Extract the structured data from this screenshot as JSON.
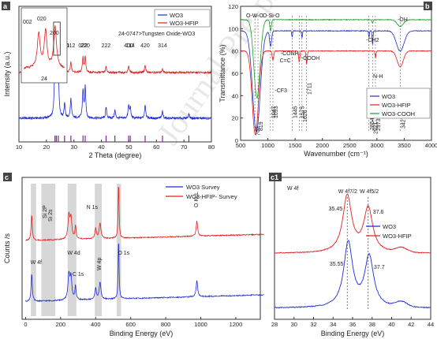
{
  "figure": {
    "watermark": "Journal Pre-proof"
  },
  "colors": {
    "blue": "#1f2bd6",
    "red": "#e0201f",
    "green": "#1a9e2b",
    "purple": "#8a1fa0",
    "grey": "#bdbdbd"
  },
  "chart_data": [
    {
      "panel": "a",
      "type": "line",
      "xlabel": "2 Theta (degree)",
      "ylabel": "Intensity (a.u.)",
      "xlim": [
        10,
        80
      ],
      "xticks": [
        10,
        20,
        30,
        40,
        50,
        60,
        70,
        80
      ],
      "grid": false,
      "legend_position": "top-right",
      "series": [
        {
          "name": "WO3",
          "color": "#1f2bd6",
          "peaks": [
            [
              23.1,
              1.0
            ],
            [
              23.6,
              0.95
            ],
            [
              24.3,
              0.9
            ],
            [
              26.6,
              0.25
            ],
            [
              28.9,
              0.35
            ],
            [
              33.3,
              0.5
            ],
            [
              34.1,
              0.55
            ],
            [
              41.7,
              0.2
            ],
            [
              44.9,
              0.15
            ],
            [
              49.9,
              0.22
            ],
            [
              50.5,
              0.18
            ],
            [
              55.9,
              0.25
            ],
            [
              62.2,
              0.12
            ],
            [
              71.8,
              0.08
            ]
          ]
        },
        {
          "name": "WO3-HFIP",
          "color": "#e0201f",
          "peaks": [
            [
              23.1,
              0.6
            ],
            [
              23.6,
              0.55
            ],
            [
              24.3,
              0.5
            ],
            [
              26.6,
              0.15
            ],
            [
              28.9,
              0.22
            ],
            [
              33.3,
              0.3
            ],
            [
              34.1,
              0.33
            ],
            [
              41.7,
              0.12
            ],
            [
              49.9,
              0.14
            ],
            [
              55.9,
              0.16
            ],
            [
              62.2,
              0.08
            ]
          ]
        }
      ],
      "reference_lines": {
        "label": "24-0747>Tungsten Oxide-WO3",
        "x": [
          23.1,
          23.6,
          24.3,
          26.6,
          28.9,
          33.3,
          34.1,
          41.7,
          44.9,
          49.9,
          50.5,
          55.9,
          62.2,
          71.8
        ]
      },
      "peak_labels": [
        {
          "text": "120",
          "x": 26.6
        },
        {
          "text": "112",
          "x": 28.9
        },
        {
          "text": "022",
          "x": 33.3
        },
        {
          "text": "220",
          "x": 34.1
        },
        {
          "text": "222",
          "x": 41.7
        },
        {
          "text": "400",
          "x": 49.9
        },
        {
          "text": "114",
          "x": 50.5
        },
        {
          "text": "420",
          "x": 55.9
        },
        {
          "text": "314",
          "x": 62.2
        }
      ],
      "inset": {
        "labels": [
          "002",
          "020",
          "200"
        ],
        "tick_label": "24"
      }
    },
    {
      "panel": "b",
      "type": "line",
      "xlabel": "Wavenumber (cm⁻¹)",
      "ylabel": "Transmittance (%)",
      "xlim": [
        500,
        4000
      ],
      "ylim": [
        0,
        120
      ],
      "xticks": [
        500,
        1000,
        1500,
        2000,
        2500,
        3000,
        3500,
        4000
      ],
      "yticks": [
        0,
        20,
        40,
        60,
        80,
        100,
        120
      ],
      "grid": false,
      "legend_position": "bottom-right",
      "series": [
        {
          "name": "WO3",
          "color": "#1f2bd6"
        },
        {
          "name": "WO3-HFIP",
          "color": "#e0201f"
        },
        {
          "name": "WO3-COOH",
          "color": "#1a9e2b"
        }
      ],
      "dashed_lines": [
        762,
        819,
        1047,
        1093,
        1445,
        1575,
        1626,
        1711,
        2854,
        2921,
        2973,
        3427
      ],
      "annotations": [
        "O-W-O",
        "O-Si-O",
        "-CONH",
        "C=C",
        "-CF3",
        "-COOH",
        "-CH2",
        "-OH",
        "N-H"
      ],
      "wavenumber_labels": [
        "762",
        "819",
        "1047",
        "1093",
        "1445",
        "1575",
        "1626",
        "1711",
        "2854",
        "2921",
        "2973",
        "3427"
      ]
    },
    {
      "panel": "c",
      "type": "line",
      "xlabel": "Binding Energy (eV)",
      "ylabel": "Counts /s",
      "xlim": [
        -20,
        1340
      ],
      "xticks": [
        0,
        200,
        400,
        600,
        800,
        1000,
        1200
      ],
      "grid": false,
      "legend_position": "top-right",
      "series": [
        {
          "name": "WO3 Survey",
          "color": "#1f2bd6"
        },
        {
          "name": "WO3-HFIP- Survey",
          "color": "#e0201f"
        }
      ],
      "peak_labels": [
        "Si 2P",
        "Si 2s",
        "N 1s",
        "O KLL",
        "W 4f",
        "W 4d",
        "C 1s",
        "W 4p",
        "O 1s"
      ]
    },
    {
      "panel": "c1",
      "type": "line",
      "title": "W 4f",
      "xlabel": "Binding Energy (eV)",
      "ylabel": "Counts /s",
      "xlim": [
        28,
        44
      ],
      "xticks": [
        28,
        30,
        32,
        34,
        36,
        38,
        40,
        42,
        44
      ],
      "grid": false,
      "legend_position": "right",
      "series": [
        {
          "name": "WO3",
          "color": "#1f2bd6",
          "peaks": [
            35.55,
            37.7
          ]
        },
        {
          "name": "WO3-HFIP",
          "color": "#e0201f",
          "peaks": [
            35.45,
            37.6
          ]
        }
      ],
      "peak_labels": [
        "35.45",
        "37.6",
        "35.55",
        "37.7"
      ],
      "orbital_labels": {
        "w4f72": "W 4f7/2",
        "w4f52": "W 4f5/2"
      }
    }
  ]
}
